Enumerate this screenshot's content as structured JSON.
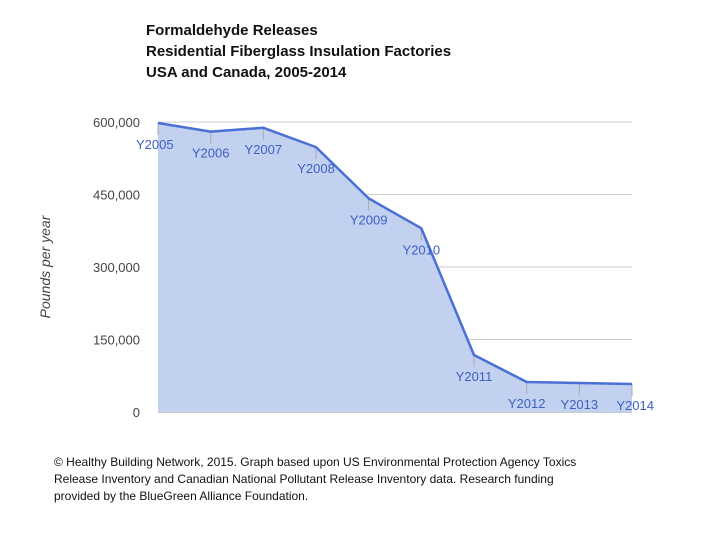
{
  "chart_data": {
    "type": "area",
    "title_lines": [
      "Formaldehyde Releases",
      "Residential Fiberglass Insulation Factories",
      "USA and Canada, 2005-2014"
    ],
    "xlabel": "",
    "ylabel": "Pounds per year",
    "ylim": [
      0,
      600000
    ],
    "y_ticks": [
      0,
      150000,
      300000,
      450000,
      600000
    ],
    "y_tick_labels": [
      "0",
      "150,000",
      "300,000",
      "450,000",
      "600,000"
    ],
    "grid": true,
    "categories": [
      "Y2005",
      "Y2006",
      "Y2007",
      "Y2008",
      "Y2009",
      "Y2010",
      "Y2011",
      "Y2012",
      "Y2013",
      "Y2014"
    ],
    "values": [
      598000,
      580000,
      588000,
      548000,
      442000,
      380000,
      118000,
      62000,
      60000,
      58000
    ],
    "colors": {
      "line": "#4a6fd6",
      "fill": "#c3d1f0",
      "grid": "#cccccc",
      "label": "#3d5fc4"
    }
  },
  "caption_lines": [
    "© Healthy Building Network, 2015.   Graph based upon US Environmental Protection Agency Toxics",
    "Release Inventory and Canadian National Pollutant Release Inventory data.  Research funding",
    "provided by the BlueGreen Alliance Foundation."
  ]
}
